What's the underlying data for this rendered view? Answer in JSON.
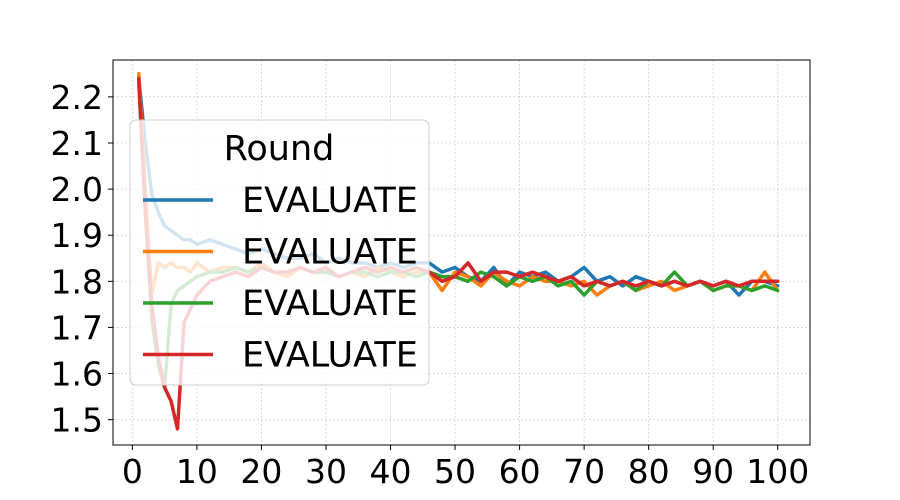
{
  "chart_data": {
    "type": "line",
    "title": "",
    "xlabel": "",
    "ylabel": "",
    "xlim": [
      -3,
      105
    ],
    "ylim": [
      1.445,
      2.28
    ],
    "grid": true,
    "legend": {
      "title": "Round",
      "placement": "center-left"
    },
    "xticks": [
      0,
      10,
      20,
      30,
      40,
      50,
      60,
      70,
      80,
      90,
      100
    ],
    "yticks": [
      1.5,
      1.6,
      1.7,
      1.8,
      1.9,
      2.0,
      2.1,
      2.2
    ],
    "series": [
      {
        "name": "EVALUATE",
        "color": "#1f77b4",
        "x": [
          1,
          2,
          3,
          4,
          5,
          6,
          7,
          8,
          9,
          10,
          12,
          14,
          16,
          18,
          20,
          22,
          24,
          26,
          28,
          30,
          32,
          34,
          36,
          38,
          40,
          42,
          44,
          46,
          48,
          50,
          52,
          54,
          56,
          58,
          60,
          62,
          64,
          66,
          68,
          70,
          72,
          74,
          76,
          78,
          80,
          82,
          84,
          86,
          88,
          90,
          92,
          94,
          96,
          98,
          100
        ],
        "y": [
          2.24,
          2.1,
          1.99,
          1.95,
          1.92,
          1.91,
          1.9,
          1.89,
          1.89,
          1.88,
          1.89,
          1.88,
          1.87,
          1.86,
          1.87,
          1.86,
          1.85,
          1.85,
          1.86,
          1.84,
          1.85,
          1.84,
          1.84,
          1.83,
          1.84,
          1.83,
          1.84,
          1.84,
          1.82,
          1.83,
          1.81,
          1.8,
          1.83,
          1.79,
          1.82,
          1.81,
          1.82,
          1.8,
          1.81,
          1.83,
          1.8,
          1.81,
          1.79,
          1.81,
          1.8,
          1.79,
          1.8,
          1.79,
          1.8,
          1.79,
          1.8,
          1.77,
          1.8,
          1.8,
          1.79
        ]
      },
      {
        "name": "EVALUATE",
        "color": "#ff7f0e",
        "x": [
          1,
          2,
          3,
          4,
          5,
          6,
          7,
          8,
          9,
          10,
          12,
          14,
          16,
          18,
          20,
          22,
          24,
          26,
          28,
          30,
          32,
          34,
          36,
          38,
          40,
          42,
          44,
          46,
          48,
          50,
          52,
          54,
          56,
          58,
          60,
          62,
          64,
          66,
          68,
          70,
          72,
          74,
          76,
          78,
          80,
          82,
          84,
          86,
          88,
          90,
          92,
          94,
          96,
          98,
          100
        ],
        "y": [
          2.25,
          2.0,
          1.77,
          1.84,
          1.83,
          1.84,
          1.83,
          1.83,
          1.82,
          1.84,
          1.82,
          1.83,
          1.83,
          1.82,
          1.84,
          1.82,
          1.81,
          1.83,
          1.82,
          1.82,
          1.81,
          1.82,
          1.81,
          1.83,
          1.82,
          1.81,
          1.82,
          1.82,
          1.78,
          1.82,
          1.81,
          1.79,
          1.82,
          1.8,
          1.79,
          1.81,
          1.8,
          1.8,
          1.79,
          1.8,
          1.77,
          1.79,
          1.8,
          1.78,
          1.79,
          1.8,
          1.78,
          1.79,
          1.8,
          1.78,
          1.79,
          1.79,
          1.78,
          1.82,
          1.78
        ]
      },
      {
        "name": "EVALUATE",
        "color": "#2ca02c",
        "x": [
          1,
          2,
          3,
          4,
          5,
          6,
          7,
          8,
          9,
          10,
          12,
          14,
          16,
          18,
          20,
          22,
          24,
          26,
          28,
          30,
          32,
          34,
          36,
          38,
          40,
          42,
          44,
          46,
          48,
          50,
          52,
          54,
          56,
          58,
          60,
          62,
          64,
          66,
          68,
          70,
          72,
          74,
          76,
          78,
          80,
          82,
          84,
          86,
          88,
          90,
          92,
          94,
          96,
          98,
          100
        ],
        "y": [
          2.23,
          1.95,
          1.72,
          1.62,
          1.57,
          1.75,
          1.78,
          1.79,
          1.8,
          1.81,
          1.82,
          1.82,
          1.83,
          1.82,
          1.83,
          1.82,
          1.82,
          1.83,
          1.82,
          1.82,
          1.81,
          1.82,
          1.82,
          1.81,
          1.82,
          1.82,
          1.81,
          1.82,
          1.81,
          1.81,
          1.8,
          1.82,
          1.81,
          1.79,
          1.81,
          1.8,
          1.81,
          1.79,
          1.8,
          1.77,
          1.8,
          1.79,
          1.8,
          1.78,
          1.8,
          1.79,
          1.82,
          1.79,
          1.8,
          1.78,
          1.79,
          1.79,
          1.78,
          1.79,
          1.78
        ]
      },
      {
        "name": "EVALUATE",
        "color": "#d62728",
        "x": [
          1,
          2,
          3,
          4,
          5,
          6,
          7,
          8,
          9,
          10,
          12,
          14,
          16,
          18,
          20,
          22,
          24,
          26,
          28,
          30,
          32,
          34,
          36,
          38,
          40,
          42,
          44,
          46,
          48,
          50,
          52,
          54,
          56,
          58,
          60,
          62,
          64,
          66,
          68,
          70,
          72,
          74,
          76,
          78,
          80,
          82,
          84,
          86,
          88,
          90,
          92,
          94,
          96,
          98,
          100
        ],
        "y": [
          2.24,
          1.95,
          1.75,
          1.64,
          1.57,
          1.54,
          1.48,
          1.71,
          1.74,
          1.77,
          1.8,
          1.81,
          1.82,
          1.81,
          1.83,
          1.82,
          1.82,
          1.83,
          1.82,
          1.83,
          1.81,
          1.82,
          1.83,
          1.82,
          1.83,
          1.82,
          1.83,
          1.82,
          1.8,
          1.81,
          1.84,
          1.8,
          1.82,
          1.82,
          1.81,
          1.82,
          1.81,
          1.8,
          1.81,
          1.79,
          1.8,
          1.79,
          1.8,
          1.79,
          1.8,
          1.79,
          1.8,
          1.79,
          1.8,
          1.79,
          1.8,
          1.79,
          1.8,
          1.8,
          1.8
        ]
      }
    ]
  }
}
